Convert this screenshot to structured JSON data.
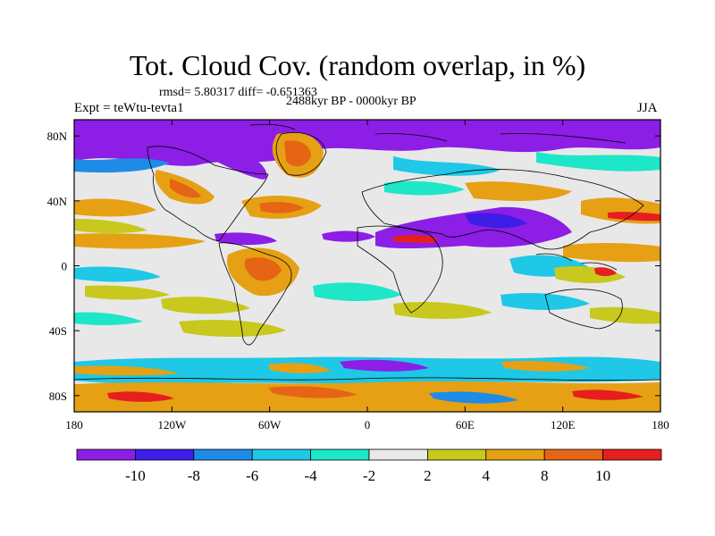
{
  "title": "Tot. Cloud Cov. (random overlap, in %)",
  "stats": "rmsd= 5.80317 diff= -0.651363",
  "experiment": "Expt = teWtu-tevta1",
  "period": "2488kyr BP - 0000kyr BP",
  "season": "JJA",
  "map": {
    "lon_range": [
      -180,
      180
    ],
    "lat_range": [
      -90,
      90
    ],
    "x_ticks": [
      {
        "value": -180,
        "label": "180"
      },
      {
        "value": -120,
        "label": "120W"
      },
      {
        "value": -60,
        "label": "60W"
      },
      {
        "value": 0,
        "label": "0"
      },
      {
        "value": 60,
        "label": "60E"
      },
      {
        "value": 120,
        "label": "120E"
      },
      {
        "value": 180,
        "label": "180"
      }
    ],
    "y_ticks": [
      {
        "value": 80,
        "label": "80N"
      },
      {
        "value": 40,
        "label": "40N"
      },
      {
        "value": 0,
        "label": "0"
      },
      {
        "value": -40,
        "label": "40S"
      },
      {
        "value": -80,
        "label": "80S"
      }
    ]
  },
  "colorbar": {
    "labels": [
      "-10",
      "-8",
      "-6",
      "-4",
      "-2",
      "2",
      "4",
      "8",
      "10"
    ],
    "colors": [
      "#8c1ee6",
      "#3c1ee6",
      "#1e8ce6",
      "#1ec8e6",
      "#1ee6c8",
      "#e8e8e8",
      "#c8c81e",
      "#e6a014",
      "#e66414",
      "#e61e1e"
    ]
  }
}
